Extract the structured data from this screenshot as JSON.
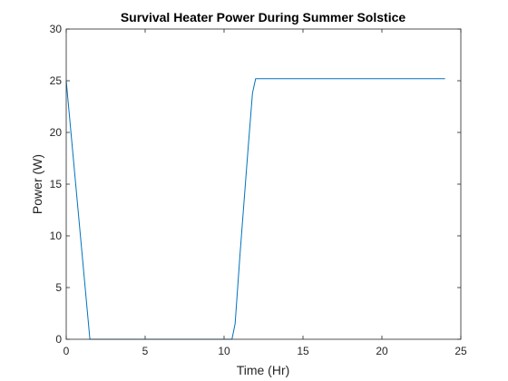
{
  "chart_data": {
    "type": "line",
    "title": "Survival Heater Power During Summer Solstice",
    "xlabel": "Time (Hr)",
    "ylabel": "Power (W)",
    "xlim": [
      0,
      25
    ],
    "ylim": [
      0,
      30
    ],
    "xticks": [
      0,
      5,
      10,
      15,
      20,
      25
    ],
    "yticks": [
      0,
      5,
      10,
      15,
      20,
      25,
      30
    ],
    "grid": false,
    "line_color": "#0072BD",
    "series": [
      {
        "x": [
          0,
          1.5,
          10.5,
          10.7,
          11.0,
          11.5,
          11.8,
          12.0,
          24.0
        ],
        "y": [
          25.0,
          0.0,
          0.0,
          1.5,
          8.0,
          18.0,
          23.8,
          25.2,
          25.2
        ]
      }
    ]
  }
}
